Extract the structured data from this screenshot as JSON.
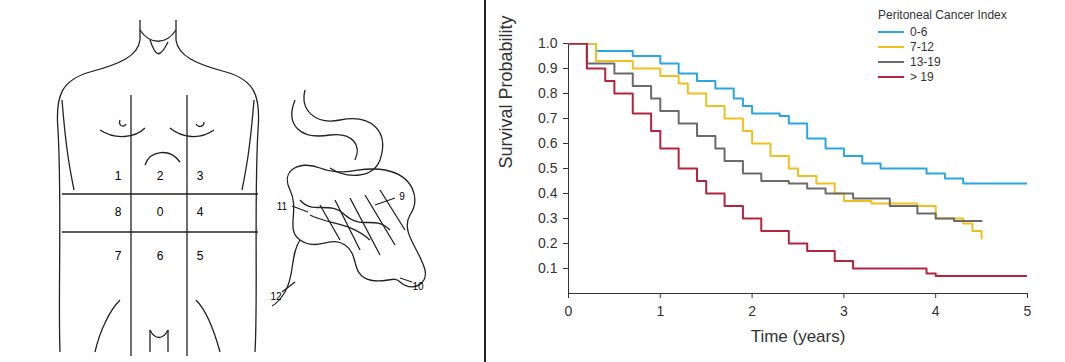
{
  "chart_data": {
    "type": "line",
    "xlabel": "Time (years)",
    "ylabel": "Survival Probability",
    "legend_title": "Peritoneal Cancer Index",
    "legend": "top-right",
    "line_style": "step",
    "xlim": [
      0,
      5
    ],
    "xticks": [
      0,
      1,
      2,
      3,
      4,
      5
    ],
    "ylim": [
      0,
      1
    ],
    "yticks": [
      0.1,
      0.2,
      0.3,
      0.4,
      0.5,
      0.6,
      0.7,
      0.8,
      0.9,
      {
        "value": 1,
        "label": "1.0"
      }
    ],
    "series": [
      {
        "name": "0-6",
        "color": "#2aa7e1",
        "x": [
          0,
          0.3,
          0.7,
          1.0,
          1.2,
          1.4,
          1.6,
          1.8,
          1.9,
          2.0,
          2.3,
          2.4,
          2.6,
          2.8,
          3.0,
          3.2,
          3.4,
          3.9,
          4.1,
          4.3,
          5.0
        ],
        "values": [
          1.0,
          0.97,
          0.95,
          0.92,
          0.88,
          0.85,
          0.82,
          0.78,
          0.75,
          0.72,
          0.71,
          0.68,
          0.62,
          0.58,
          0.55,
          0.52,
          0.5,
          0.48,
          0.46,
          0.44,
          0.44
        ]
      },
      {
        "name": "7-12",
        "color": "#f0c020",
        "x": [
          0,
          0.3,
          0.7,
          1.0,
          1.2,
          1.3,
          1.5,
          1.7,
          1.9,
          2.0,
          2.2,
          2.4,
          2.5,
          2.7,
          2.9,
          3.0,
          3.3,
          3.8,
          4.0,
          4.3,
          4.4,
          4.5
        ],
        "values": [
          1.0,
          0.93,
          0.9,
          0.87,
          0.84,
          0.8,
          0.75,
          0.7,
          0.65,
          0.6,
          0.55,
          0.5,
          0.47,
          0.44,
          0.4,
          0.37,
          0.36,
          0.35,
          0.3,
          0.28,
          0.25,
          0.22
        ]
      },
      {
        "name": "13-19",
        "color": "#6b6b6b",
        "x": [
          0,
          0.2,
          0.5,
          0.7,
          0.9,
          1.0,
          1.2,
          1.4,
          1.6,
          1.7,
          1.9,
          2.1,
          2.4,
          2.6,
          2.8,
          3.1,
          3.5,
          3.8,
          4.0,
          4.2,
          4.5
        ],
        "values": [
          1.0,
          0.92,
          0.88,
          0.83,
          0.78,
          0.73,
          0.68,
          0.63,
          0.58,
          0.53,
          0.48,
          0.45,
          0.44,
          0.42,
          0.4,
          0.38,
          0.35,
          0.32,
          0.3,
          0.29,
          0.29
        ]
      },
      {
        "name": "> 19",
        "color": "#b3243f",
        "x": [
          0,
          0.2,
          0.4,
          0.5,
          0.7,
          0.9,
          1.0,
          1.2,
          1.4,
          1.5,
          1.7,
          1.9,
          2.1,
          2.4,
          2.6,
          2.9,
          3.1,
          3.9,
          4.0,
          5.0
        ],
        "values": [
          1.0,
          0.9,
          0.85,
          0.8,
          0.72,
          0.65,
          0.58,
          0.5,
          0.45,
          0.4,
          0.35,
          0.3,
          0.25,
          0.2,
          0.17,
          0.13,
          0.1,
          0.08,
          0.07,
          0.07
        ]
      }
    ]
  },
  "diagram": {
    "abdomen_regions": [
      [
        "1",
        "2",
        "3"
      ],
      [
        "8",
        "0",
        "4"
      ],
      [
        "7",
        "6",
        "5"
      ]
    ],
    "small_bowel_regions": [
      "9",
      "10",
      "11",
      "12"
    ]
  }
}
